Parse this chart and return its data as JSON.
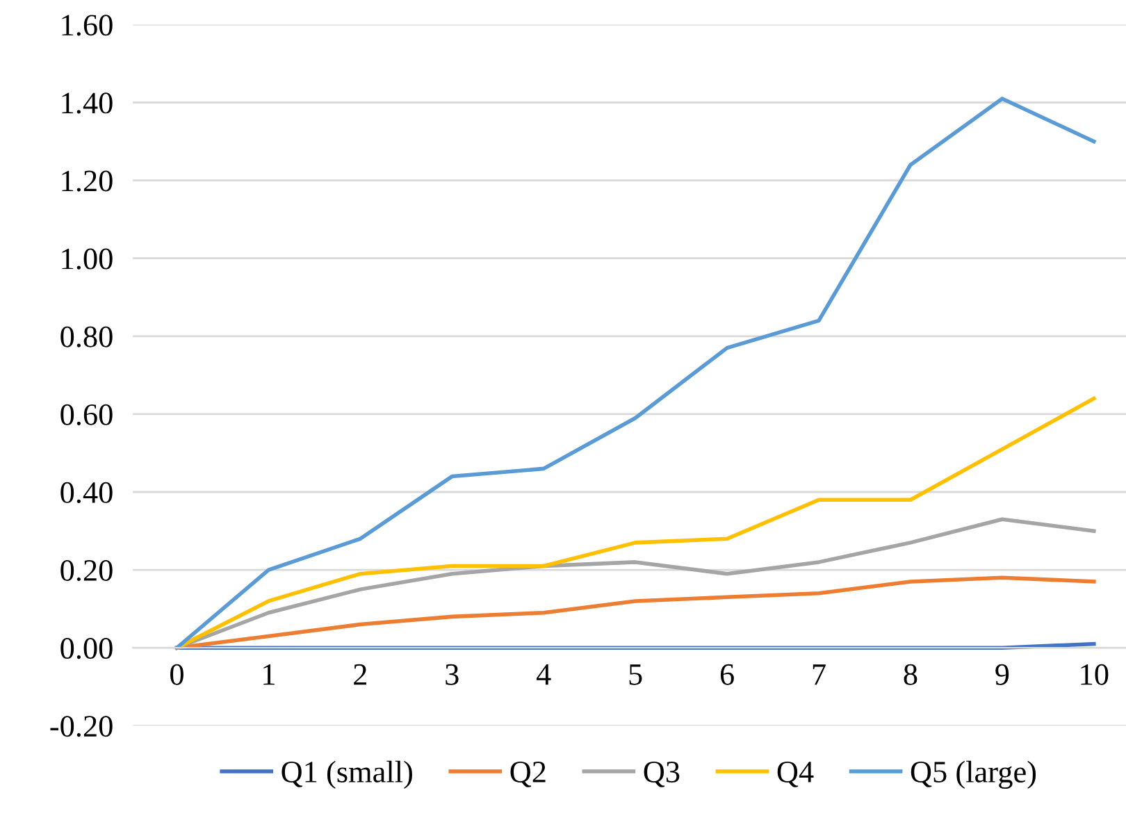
{
  "chart_data": {
    "type": "line",
    "categories": [
      "0",
      "1",
      "2",
      "3",
      "4",
      "5",
      "6",
      "7",
      "8",
      "9",
      "10"
    ],
    "series": [
      {
        "name": "Q1 (small)",
        "color": "#4472c4",
        "values": [
          0,
          0,
          0,
          0,
          0,
          0,
          0,
          0,
          0,
          0,
          0.01
        ]
      },
      {
        "name": "Q2",
        "color": "#ed7d31",
        "values": [
          0,
          0.03,
          0.06,
          0.08,
          0.09,
          0.12,
          0.13,
          0.14,
          0.17,
          0.18,
          0.17
        ]
      },
      {
        "name": "Q3",
        "color": "#a5a5a5",
        "values": [
          0,
          0.09,
          0.15,
          0.19,
          0.21,
          0.22,
          0.19,
          0.22,
          0.27,
          0.33,
          0.3
        ]
      },
      {
        "name": "Q4",
        "color": "#ffc000",
        "values": [
          0,
          0.12,
          0.19,
          0.21,
          0.21,
          0.27,
          0.28,
          0.38,
          0.38,
          0.51,
          0.64
        ]
      },
      {
        "name": "Q5 (large)",
        "color": "#5b9bd5",
        "values": [
          0,
          0.2,
          0.28,
          0.44,
          0.46,
          0.59,
          0.77,
          0.84,
          1.24,
          1.41,
          1.3
        ]
      }
    ],
    "ylim": [
      -0.2,
      1.6
    ],
    "yticks": [
      {
        "value": -0.2,
        "label": "-0.20"
      },
      {
        "value": 0,
        "label": "0.00"
      },
      {
        "value": 0.2,
        "label": "0.20"
      },
      {
        "value": 0.4,
        "label": "0.40"
      },
      {
        "value": 0.6,
        "label": "0.60"
      },
      {
        "value": 0.8,
        "label": "0.80"
      },
      {
        "value": 1.0,
        "label": "1.00"
      },
      {
        "value": 1.2,
        "label": "1.20"
      },
      {
        "value": 1.4,
        "label": "1.40"
      },
      {
        "value": 1.6,
        "label": "1.60"
      }
    ],
    "grid": "y",
    "legend": "bottom",
    "marker": "none",
    "line_style": "solid"
  }
}
